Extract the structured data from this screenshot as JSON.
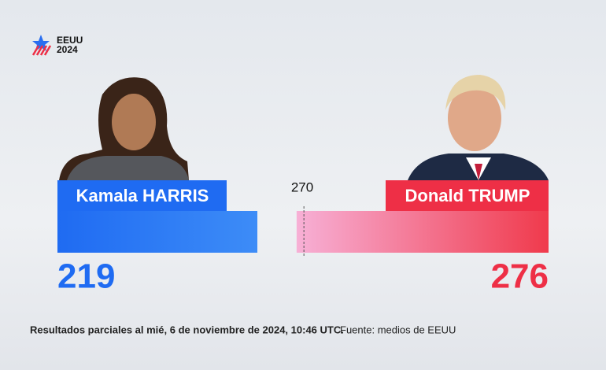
{
  "chart_data": {
    "type": "bar",
    "logo": [
      "EEUU",
      "2024"
    ],
    "xlim": [
      0,
      538
    ],
    "threshold": 270,
    "series": [
      {
        "name": "Kamala HARRIS",
        "color": "#1f6bf2",
        "values": [
          219
        ]
      },
      {
        "name": "Donald TRUMP",
        "color": "#ee2f46",
        "values": [
          276
        ]
      }
    ],
    "footnote": "Resultados parciales al mié, 6 de noviembre de 2024, 10:46 UTC.",
    "source": "Fuente: medios de EEUU"
  }
}
